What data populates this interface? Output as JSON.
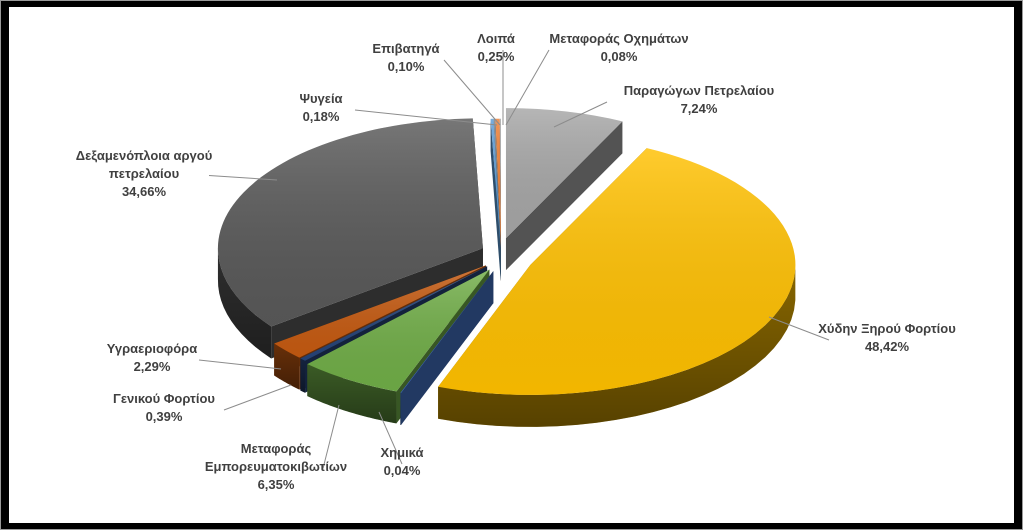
{
  "chart_data": {
    "type": "pie",
    "title": "",
    "style": "3d-exploded",
    "start_angle_deg": 270,
    "slices": [
      {
        "key": "paragogon",
        "name": "Παραγώγων Πετρελαίου",
        "value": 7.24,
        "label": "7,24%",
        "color": "#a6a6a6"
      },
      {
        "key": "xydhn",
        "name": "Χύδην Ξηρού Φορτίου",
        "value": 48.42,
        "label": "48,42%",
        "color": "#ffc000"
      },
      {
        "key": "xhmika",
        "name": "Χημικά",
        "value": 0.04,
        "label": "0,04%",
        "color": "#4472c4"
      },
      {
        "key": "container",
        "name": "Μεταφοράς Εμπορευματοκιβωτίων",
        "name_lines": [
          "Μεταφοράς",
          "Εμπορευματοκιβωτίων"
        ],
        "value": 6.35,
        "label": "6,35%",
        "color": "#70ad47"
      },
      {
        "key": "geniko",
        "name": "Γενικού Φορτίου",
        "value": 0.39,
        "label": "0,39%",
        "color": "#264478"
      },
      {
        "key": "ygraerio",
        "name": "Υγραεριοφόρα",
        "value": 2.29,
        "label": "2,29%",
        "color": "#c55a11"
      },
      {
        "key": "dexamen",
        "name": "Δεξαμενόπλοια αργού πετρελαίου",
        "name_lines": [
          "Δεξαμενόπλοια αργού",
          "πετρελαίου"
        ],
        "value": 34.66,
        "label": "34,66%",
        "color": "#595959"
      },
      {
        "key": "psygeia",
        "name": "Ψυγεία",
        "value": 0.18,
        "label": "0,18%",
        "color": "#5b9bd5"
      },
      {
        "key": "epivatiga",
        "name": "Επιβατηγά",
        "value": 0.1,
        "label": "0,10%",
        "color": "#7f7f7f"
      },
      {
        "key": "loipa",
        "name": "Λοιπά",
        "value": 0.25,
        "label": "0,25%",
        "color": "#ed7d31"
      },
      {
        "key": "oximaton",
        "name": "Μεταφοράς Οχημάτων",
        "value": 0.08,
        "label": "0,08%",
        "color": "#a5a5a5"
      }
    ]
  }
}
